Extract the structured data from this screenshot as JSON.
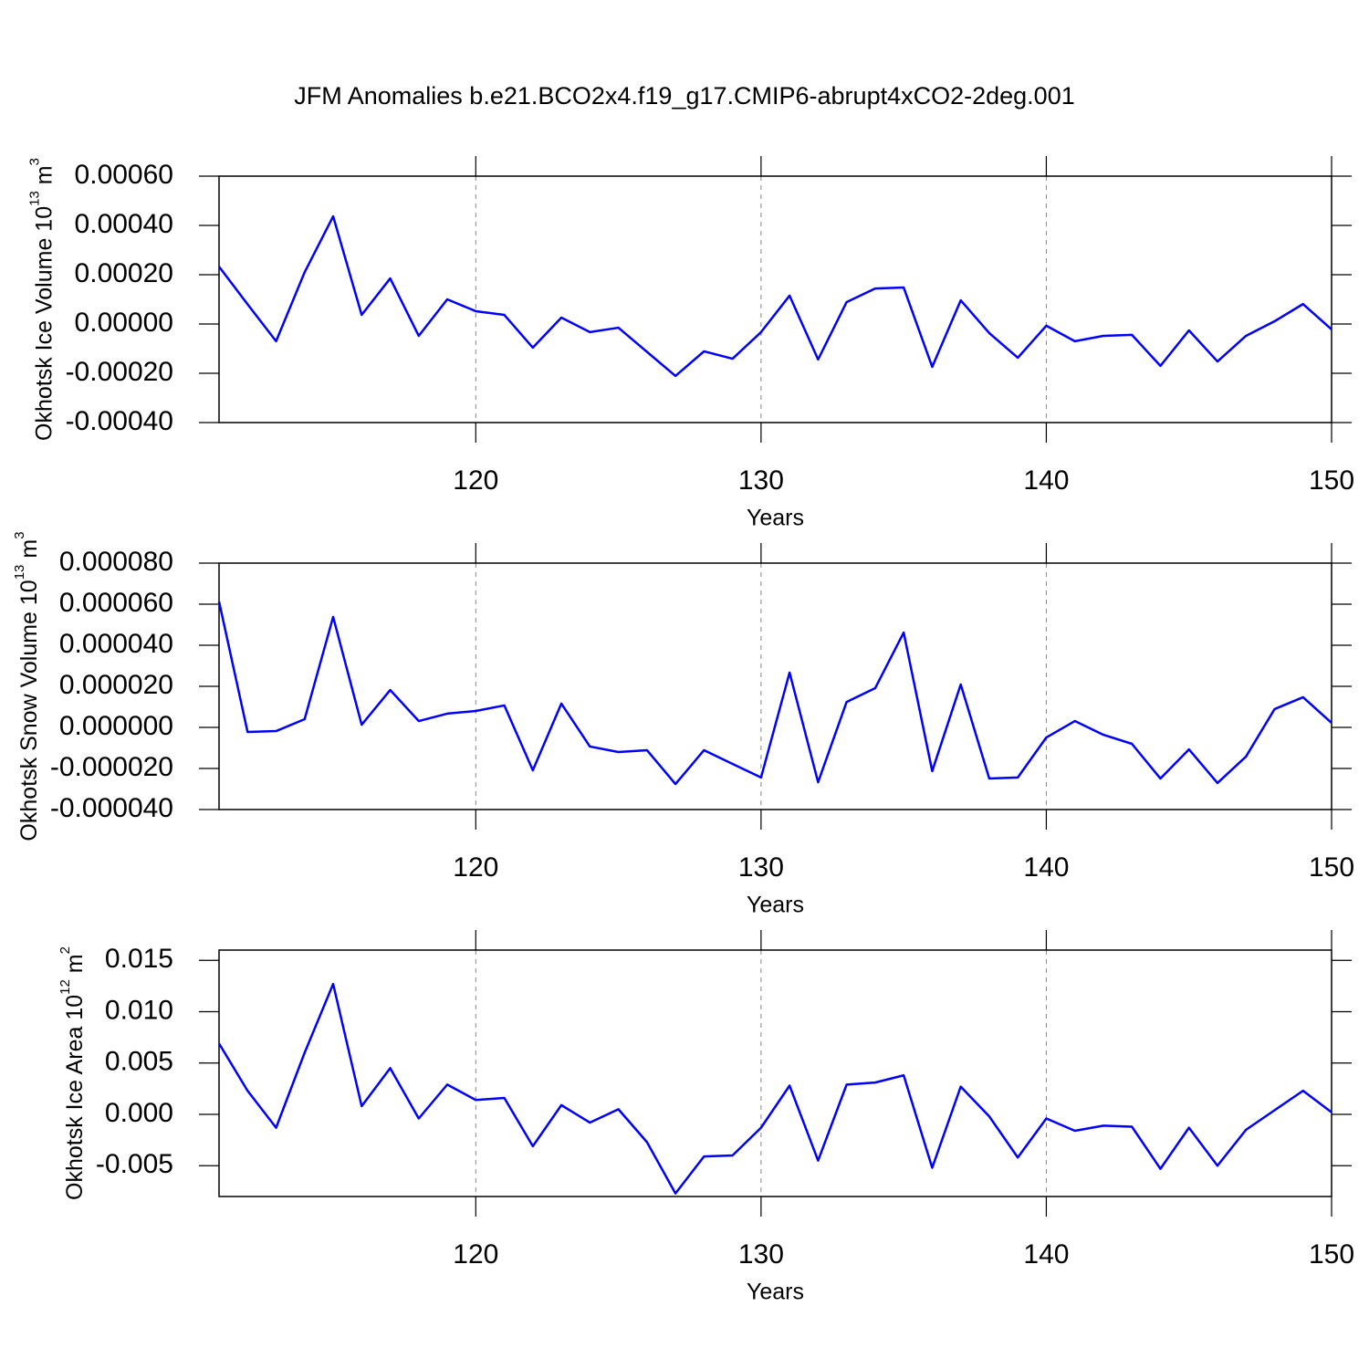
{
  "title": "JFM Anomalies b.e21.BCO2x4.f19_g17.CMIP6-abrupt4xCO2-2deg.001",
  "chart_data": [
    {
      "type": "line",
      "xlabel": "Years",
      "ylabel": {
        "main": "Okhotsk Ice Volume 10",
        "exp": "13",
        "unit": "m",
        "unit_exp": "3"
      },
      "x": [
        111,
        112,
        113,
        114,
        115,
        116,
        117,
        118,
        119,
        120,
        121,
        122,
        123,
        124,
        125,
        126,
        127,
        128,
        129,
        130,
        131,
        132,
        133,
        134,
        135,
        136,
        137,
        138,
        139,
        140,
        141,
        142,
        143,
        144,
        145,
        146,
        147,
        148,
        149,
        150
      ],
      "series": [
        {
          "color": "#0000ff",
          "values": [
            0.000233,
            8e-05,
            -7e-05,
            0.00021,
            0.000437,
            3.7e-05,
            0.000185,
            -4.8e-05,
            0.0001,
            5.2e-05,
            3.7e-05,
            -9.6e-05,
            2.6e-05,
            -3.3e-05,
            -1.5e-05,
            -0.000113,
            -0.000211,
            -0.000111,
            -0.000141,
            -3.3e-05,
            0.000115,
            -0.000144,
            8.9e-05,
            0.000144,
            0.000148,
            -0.000174,
            9.6e-05,
            -3.7e-05,
            -0.000137,
            -7e-06,
            -7e-05,
            -4.8e-05,
            -4.4e-05,
            -0.00017,
            -2.6e-05,
            -0.000152,
            -4.8e-05,
            1.1e-05,
            8.1e-05,
            -2.2e-05
          ]
        }
      ],
      "xlim": [
        111,
        150
      ],
      "xticks": [
        120,
        130,
        140,
        150
      ],
      "ylim": [
        -0.0004,
        0.0006
      ],
      "yticks": [
        {
          "value": -0.0004,
          "label": "-0.00040"
        },
        {
          "value": -0.0002,
          "label": "-0.00020"
        },
        {
          "value": 0,
          "label": "0.00000"
        },
        {
          "value": 0.0002,
          "label": "0.00020"
        },
        {
          "value": 0.0004,
          "label": "0.00040"
        },
        {
          "value": 0.0006,
          "label": "0.00060"
        }
      ],
      "grid": true
    },
    {
      "type": "line",
      "xlabel": "Years",
      "ylabel": {
        "main": "Okhotsk Snow Volume 10",
        "exp": "13",
        "unit": "m",
        "unit_exp": "3"
      },
      "x": [
        111,
        112,
        113,
        114,
        115,
        116,
        117,
        118,
        119,
        120,
        121,
        122,
        123,
        124,
        125,
        126,
        127,
        128,
        129,
        130,
        131,
        132,
        133,
        134,
        135,
        136,
        137,
        138,
        139,
        140,
        141,
        142,
        143,
        144,
        145,
        146,
        147,
        148,
        149,
        150
      ],
      "series": [
        {
          "color": "#0000ff",
          "values": [
            6.13e-05,
            -2.2e-06,
            -1.8e-06,
            4e-06,
            5.38e-05,
            1.3e-06,
            1.82e-05,
            3.1e-06,
            6.7e-06,
            8e-06,
            1.07e-05,
            -2.09e-05,
            1.16e-05,
            -9.3e-06,
            -1.2e-05,
            -1.11e-05,
            -2.76e-05,
            -1.11e-05,
            -1.78e-05,
            -2.44e-05,
            2.67e-05,
            -2.67e-05,
            1.24e-05,
            1.91e-05,
            4.62e-05,
            -2.13e-05,
            2.09e-05,
            -2.49e-05,
            -2.44e-05,
            -4.9e-06,
            3.1e-06,
            -3.6e-06,
            -8e-06,
            -2.49e-05,
            -1.07e-05,
            -2.71e-05,
            -1.42e-05,
            8.9e-06,
            1.47e-05,
            2.2e-06
          ]
        }
      ],
      "xlim": [
        111,
        150
      ],
      "xticks": [
        120,
        130,
        140,
        150
      ],
      "ylim": [
        -4e-05,
        8e-05
      ],
      "yticks": [
        {
          "value": -4e-05,
          "label": "-0.000040"
        },
        {
          "value": -2e-05,
          "label": "-0.000020"
        },
        {
          "value": 0,
          "label": "0.000000"
        },
        {
          "value": 2e-05,
          "label": "0.000020"
        },
        {
          "value": 4e-05,
          "label": "0.000040"
        },
        {
          "value": 6e-05,
          "label": "0.000060"
        },
        {
          "value": 8e-05,
          "label": "0.000080"
        }
      ],
      "grid": true
    },
    {
      "type": "line",
      "xlabel": "Years",
      "ylabel": {
        "main": "Okhotsk Ice Area 10",
        "exp": "12",
        "unit": "m",
        "unit_exp": "2"
      },
      "x": [
        111,
        112,
        113,
        114,
        115,
        116,
        117,
        118,
        119,
        120,
        121,
        122,
        123,
        124,
        125,
        126,
        127,
        128,
        129,
        130,
        131,
        132,
        133,
        134,
        135,
        136,
        137,
        138,
        139,
        140,
        141,
        142,
        143,
        144,
        145,
        146,
        147,
        148,
        149,
        150
      ],
      "series": [
        {
          "color": "#0000ff",
          "values": [
            0.0069,
            0.0023,
            -0.0013,
            0.006,
            0.0127,
            0.0008,
            0.0045,
            -0.0004,
            0.0029,
            0.0014,
            0.0016,
            -0.0031,
            0.0009,
            -0.0008,
            0.0005,
            -0.0027,
            -0.0077,
            -0.0041,
            -0.004,
            -0.0013,
            0.0028,
            -0.0045,
            0.0029,
            0.0031,
            0.0038,
            -0.0052,
            0.0027,
            -0.0002,
            -0.0042,
            -0.0004,
            -0.0016,
            -0.0011,
            -0.0012,
            -0.0053,
            -0.0013,
            -0.005,
            -0.0015,
            0.0004,
            0.0023,
            0.0002
          ]
        }
      ],
      "xlim": [
        111,
        150
      ],
      "xticks": [
        120,
        130,
        140,
        150
      ],
      "ylim": [
        -0.008,
        0.016
      ],
      "yticks": [
        {
          "value": -0.005,
          "label": "-0.005"
        },
        {
          "value": 0,
          "label": "0.000"
        },
        {
          "value": 0.005,
          "label": "0.005"
        },
        {
          "value": 0.01,
          "label": "0.010"
        },
        {
          "value": 0.015,
          "label": "0.015"
        }
      ],
      "grid": true
    }
  ]
}
